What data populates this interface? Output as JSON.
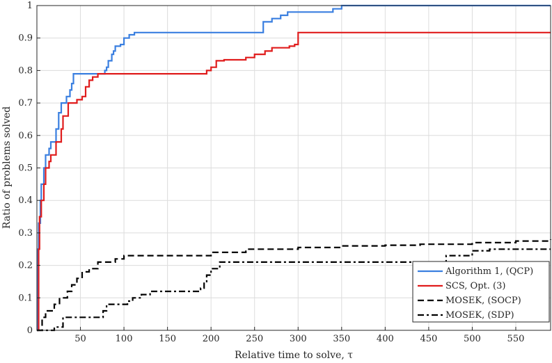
{
  "chart_data": {
    "type": "line",
    "title": "",
    "xlabel": "Relative time to solve, τ",
    "ylabel": "Ratio of problems solved",
    "xlim": [
      0,
      590
    ],
    "ylim": [
      0,
      1
    ],
    "xticks": [
      "50",
      "100",
      "150",
      "200",
      "250",
      "300",
      "350",
      "400",
      "450",
      "500",
      "550"
    ],
    "yticks": [
      "0",
      "0.1",
      "0.2",
      "0.3",
      "0.4",
      "0.5",
      "0.6",
      "0.7",
      "0.8",
      "0.9",
      "1"
    ],
    "grid": true,
    "legend_position": "bottom-right",
    "series": [
      {
        "name": "Algorithm 1, (QCP)",
        "color": "#3a7fe0",
        "dash": "solid",
        "step_points": [
          [
            0,
            0
          ],
          [
            1,
            0.25
          ],
          [
            2,
            0.33
          ],
          [
            4,
            0.4
          ],
          [
            5,
            0.45
          ],
          [
            8,
            0.5
          ],
          [
            10,
            0.54
          ],
          [
            14,
            0.56
          ],
          [
            16,
            0.58
          ],
          [
            22,
            0.62
          ],
          [
            25,
            0.67
          ],
          [
            28,
            0.7
          ],
          [
            34,
            0.72
          ],
          [
            38,
            0.74
          ],
          [
            40,
            0.76
          ],
          [
            42,
            0.79
          ],
          [
            74,
            0.79
          ],
          [
            78,
            0.8
          ],
          [
            80,
            0.81
          ],
          [
            82,
            0.83
          ],
          [
            86,
            0.85
          ],
          [
            88,
            0.86
          ],
          [
            90,
            0.875
          ],
          [
            96,
            0.88
          ],
          [
            100,
            0.9
          ],
          [
            106,
            0.91
          ],
          [
            112,
            0.917
          ],
          [
            258,
            0.917
          ],
          [
            260,
            0.95
          ],
          [
            270,
            0.96
          ],
          [
            280,
            0.97
          ],
          [
            288,
            0.98
          ],
          [
            320,
            0.98
          ],
          [
            340,
            0.99
          ],
          [
            350,
            1.0
          ],
          [
            590,
            1.0
          ]
        ]
      },
      {
        "name": "SCS, Opt. (3)",
        "color": "#e01c1c",
        "dash": "solid",
        "step_points": [
          [
            0,
            0
          ],
          [
            2,
            0.25
          ],
          [
            3,
            0.35
          ],
          [
            5,
            0.4
          ],
          [
            8,
            0.45
          ],
          [
            10,
            0.5
          ],
          [
            14,
            0.52
          ],
          [
            16,
            0.54
          ],
          [
            22,
            0.58
          ],
          [
            28,
            0.62
          ],
          [
            30,
            0.66
          ],
          [
            36,
            0.7
          ],
          [
            44,
            0.7
          ],
          [
            46,
            0.71
          ],
          [
            52,
            0.72
          ],
          [
            56,
            0.75
          ],
          [
            60,
            0.77
          ],
          [
            64,
            0.78
          ],
          [
            70,
            0.79
          ],
          [
            160,
            0.79
          ],
          [
            190,
            0.79
          ],
          [
            195,
            0.8
          ],
          [
            200,
            0.81
          ],
          [
            206,
            0.83
          ],
          [
            215,
            0.833
          ],
          [
            240,
            0.84
          ],
          [
            250,
            0.85
          ],
          [
            262,
            0.86
          ],
          [
            270,
            0.87
          ],
          [
            290,
            0.875
          ],
          [
            296,
            0.88
          ],
          [
            300,
            0.917
          ],
          [
            590,
            0.917
          ]
        ]
      },
      {
        "name": "MOSEK, (SOCP)",
        "color": "#000000",
        "dash": "dashed",
        "step_points": [
          [
            0,
            0
          ],
          [
            6,
            0.04
          ],
          [
            10,
            0.06
          ],
          [
            20,
            0.08
          ],
          [
            26,
            0.1
          ],
          [
            35,
            0.12
          ],
          [
            40,
            0.14
          ],
          [
            46,
            0.16
          ],
          [
            52,
            0.18
          ],
          [
            60,
            0.19
          ],
          [
            70,
            0.21
          ],
          [
            90,
            0.22
          ],
          [
            100,
            0.23
          ],
          [
            180,
            0.23
          ],
          [
            200,
            0.24
          ],
          [
            230,
            0.24
          ],
          [
            240,
            0.25
          ],
          [
            300,
            0.255
          ],
          [
            350,
            0.26
          ],
          [
            400,
            0.262
          ],
          [
            440,
            0.265
          ],
          [
            500,
            0.27
          ],
          [
            550,
            0.275
          ],
          [
            590,
            0.28
          ]
        ]
      },
      {
        "name": "MOSEK, (SDP)",
        "color": "#000000",
        "dash": "dashdot",
        "step_points": [
          [
            0,
            0
          ],
          [
            20,
            0.01
          ],
          [
            30,
            0.04
          ],
          [
            70,
            0.04
          ],
          [
            76,
            0.06
          ],
          [
            80,
            0.08
          ],
          [
            100,
            0.08
          ],
          [
            104,
            0.09
          ],
          [
            110,
            0.1
          ],
          [
            120,
            0.11
          ],
          [
            130,
            0.12
          ],
          [
            180,
            0.12
          ],
          [
            188,
            0.13
          ],
          [
            192,
            0.15
          ],
          [
            195,
            0.17
          ],
          [
            200,
            0.19
          ],
          [
            210,
            0.21
          ],
          [
            320,
            0.21
          ],
          [
            460,
            0.21
          ],
          [
            470,
            0.23
          ],
          [
            500,
            0.245
          ],
          [
            520,
            0.25
          ],
          [
            590,
            0.25
          ]
        ]
      }
    ]
  }
}
